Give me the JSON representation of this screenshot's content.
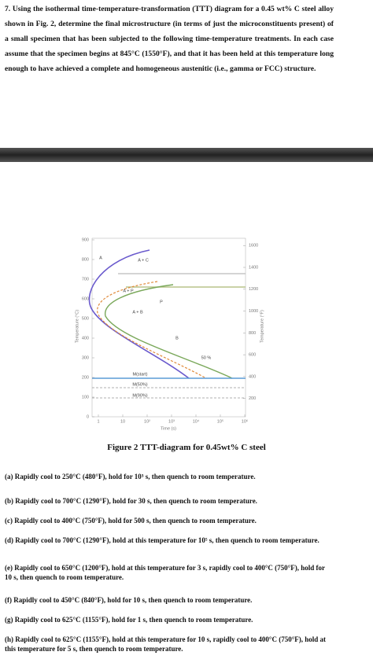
{
  "question": {
    "number": "7.",
    "text": "Using the isothermal time-temperature-transformation (TTT) diagram for a 0.45 wt% C steel alloy shown in Fig. 2, determine the final microstructure (in terms of just the microconstituents present) of a small specimen that has been subjected to the following time-temperature treatments. In each case assume that the specimen begins at 845°C (1550°F), and that it has been held at this temperature long enough to have achieved a complete and homogeneous austenitic (i.e., gamma or FCC) structure."
  },
  "figure": {
    "y_left_label": "Temperature (°C)",
    "y_right_label": "Temperature (°F)",
    "x_label": "Time (s)",
    "yticks_left": [
      900,
      800,
      700,
      600,
      500,
      400,
      300,
      200,
      100,
      0
    ],
    "yticks_right": [
      1600,
      1400,
      1200,
      1000,
      800,
      600,
      400,
      200
    ],
    "xticks": [
      1,
      10,
      {
        "value": 100,
        "label": "10²"
      },
      {
        "value": 1000,
        "label": "10³"
      },
      {
        "value": 10000,
        "label": "10⁴"
      },
      {
        "value": 100000,
        "label": "10⁵"
      },
      {
        "value": 1000000,
        "label": "10⁶"
      }
    ],
    "regions": [
      "A",
      "A + C",
      "A + P",
      "A + B",
      "B",
      "P",
      "50 %",
      "M(start)",
      "M(50%)",
      "M(90%)"
    ],
    "caption": "Figure 2 TTT-diagram for 0.45wt% C steel"
  },
  "items": [
    "(a) Rapidly cool to 250°C (480°F), hold for 10³ s, then quench to room temperature.",
    "(b) Rapidly cool to 700°C (1290°F), hold for 30 s, then quench to room temperature.",
    "(c) Rapidly cool to 400°C (750°F), hold for 500 s, then quench to room temperature.",
    "(d) Rapidly cool to 700°C (1290°F), hold at this temperature for 10⁵ s, then quench to room temperature.",
    "(e) Rapidly cool to 650°C (1200°F), hold at this temperature for 3 s, rapidly cool to 400°C (750°F), hold for 10 s, then quench to room temperature.",
    "(f) Rapidly cool to 450°C (840°F), hold for 10 s, then quench to room temperature.",
    "(g) Rapidly cool to 625°C (1155°F), hold for 1 s, then quench to room temperature.",
    "(h) Rapidly cool to 625°C (1155°F), hold at this temperature for 10 s, rapidly cool to 400°C (750°F), hold at this temperature for 5 s, then quench to room temperature."
  ]
}
